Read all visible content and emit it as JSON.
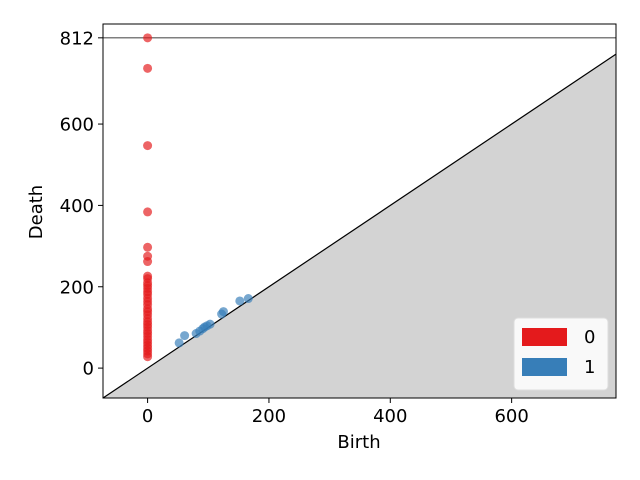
{
  "chart_data": {
    "type": "scatter",
    "title": "",
    "xlabel": "Birth",
    "ylabel": "Death",
    "xlim": [
      -73.5,
      772
    ],
    "ylim": [
      -73.5,
      846
    ],
    "x_ticks": [
      0,
      200,
      400,
      600
    ],
    "y_ticks": [
      0,
      200,
      400,
      600,
      812
    ],
    "infinity_line": {
      "value": 812,
      "label": "812"
    },
    "diagonal": true,
    "shaded_region": "below-diagonal",
    "grid": false,
    "legend": {
      "position": "bottom-right"
    },
    "series": [
      {
        "name": "0",
        "color": "#e41a1c",
        "points": [
          [
            0,
            812
          ],
          [
            0,
            737
          ],
          [
            0,
            547
          ],
          [
            0,
            384
          ],
          [
            0,
            297
          ],
          [
            0,
            275
          ],
          [
            0,
            262
          ],
          [
            0,
            226
          ],
          [
            0,
            220
          ],
          [
            0,
            210
          ],
          [
            0,
            203
          ],
          [
            0,
            196
          ],
          [
            0,
            188
          ],
          [
            0,
            181
          ],
          [
            0,
            172
          ],
          [
            0,
            164
          ],
          [
            0,
            156
          ],
          [
            0,
            146
          ],
          [
            0,
            139
          ],
          [
            0,
            131
          ],
          [
            0,
            122
          ],
          [
            0,
            114
          ],
          [
            0,
            107
          ],
          [
            0,
            100
          ],
          [
            0,
            92
          ],
          [
            0,
            85
          ],
          [
            0,
            78
          ],
          [
            0,
            70
          ],
          [
            0,
            63
          ],
          [
            0,
            56
          ],
          [
            0,
            49
          ],
          [
            0,
            42
          ],
          [
            0,
            35
          ],
          [
            0,
            28
          ]
        ]
      },
      {
        "name": "1",
        "color": "#377eb8",
        "points": [
          [
            52,
            62
          ],
          [
            61,
            80
          ],
          [
            80,
            85
          ],
          [
            86,
            91
          ],
          [
            91,
            97
          ],
          [
            94,
            101
          ],
          [
            98,
            104
          ],
          [
            103,
            108
          ],
          [
            122,
            133
          ],
          [
            125,
            139
          ],
          [
            152,
            165
          ],
          [
            166,
            171
          ]
        ]
      }
    ]
  }
}
